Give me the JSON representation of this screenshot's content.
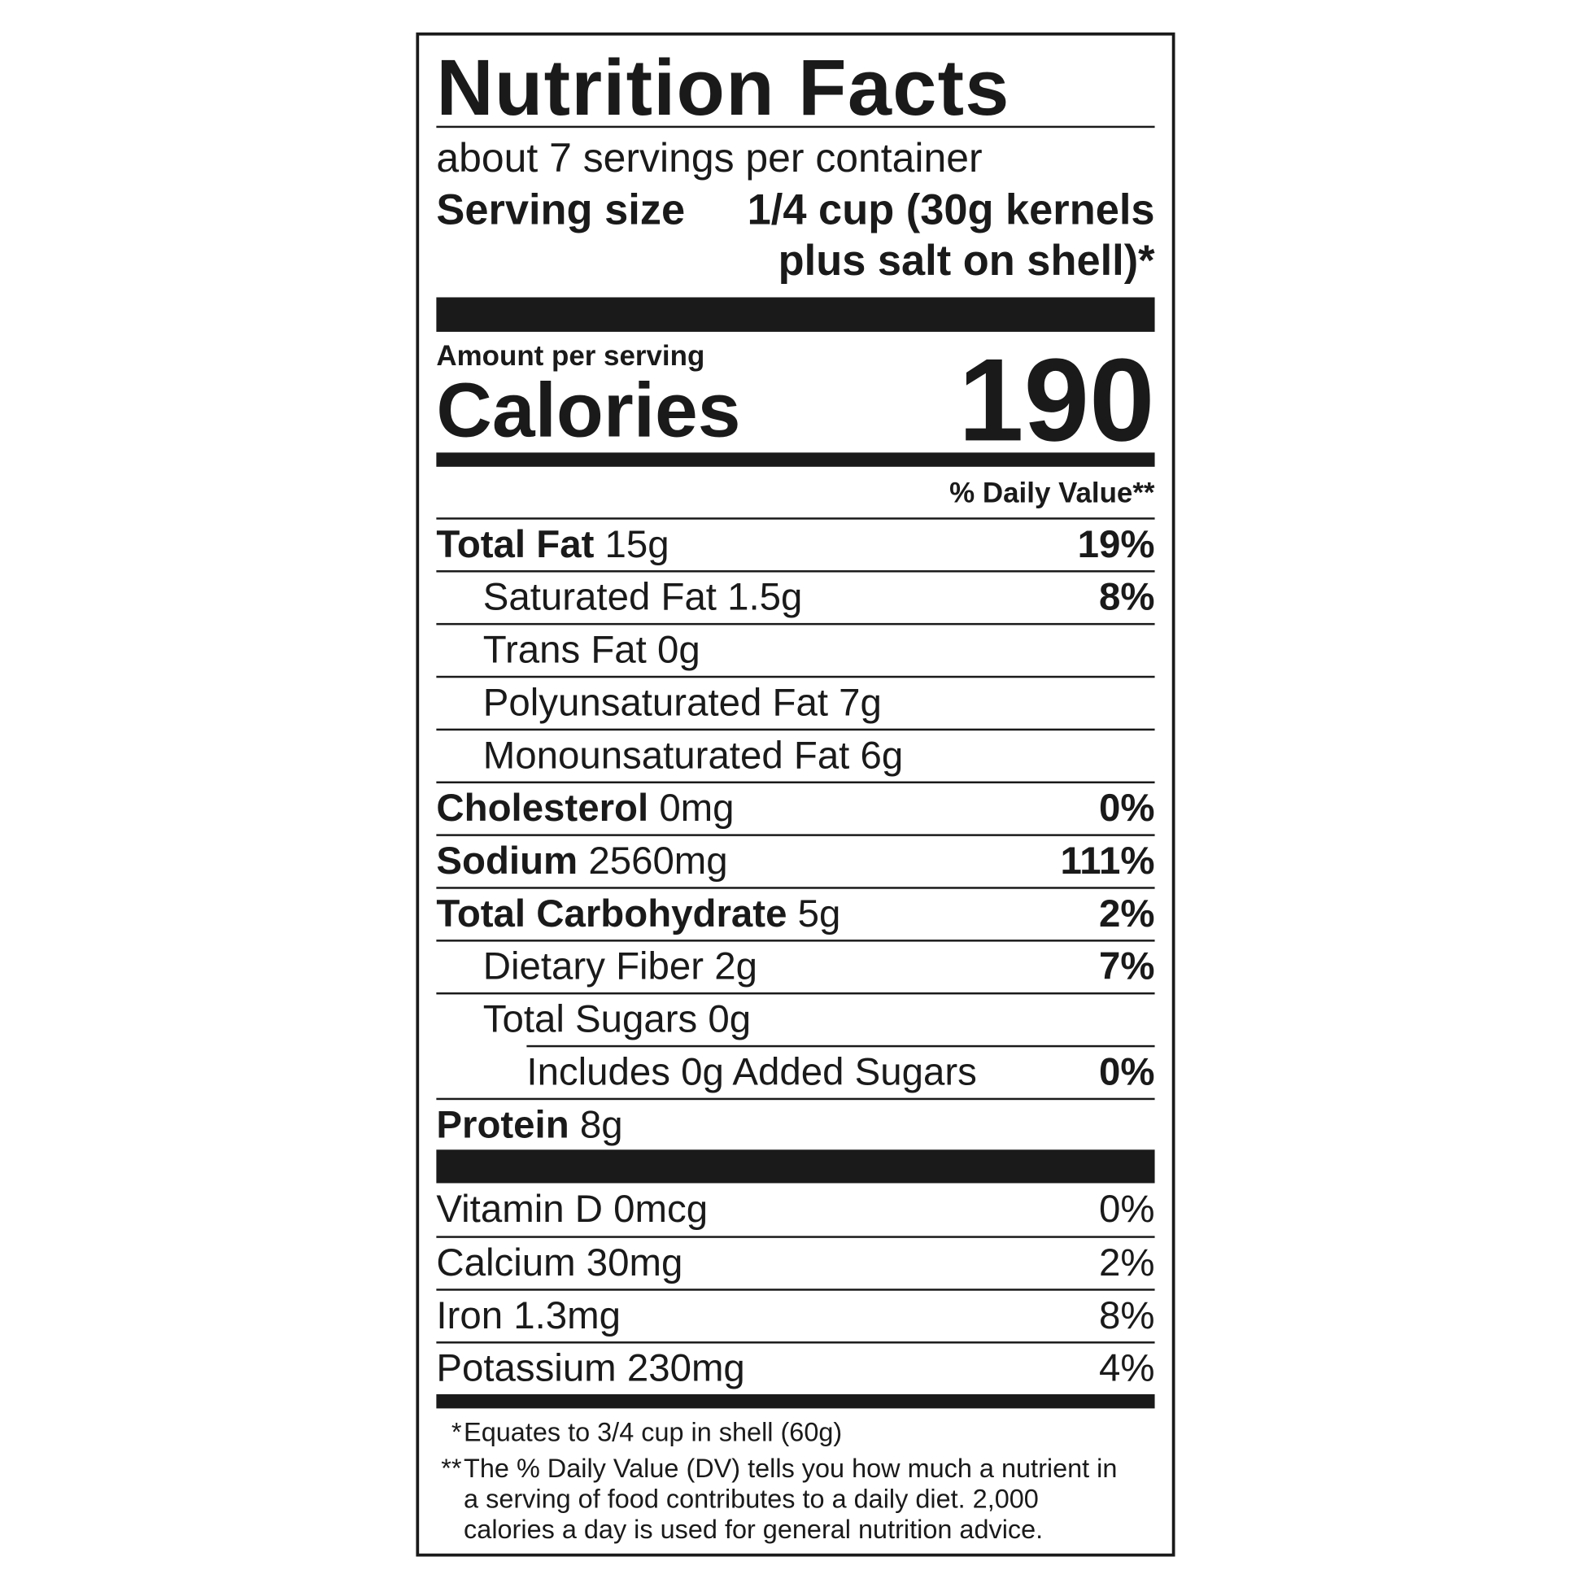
{
  "title": "Nutrition Facts",
  "servings": "about 7 servings per container",
  "serving_size": {
    "label": "Serving size",
    "lines": [
      "1/4 cup (30g kernels",
      "plus salt on shell)*"
    ]
  },
  "amount_per_serving": "Amount per serving",
  "calories": {
    "label": "Calories",
    "value": "190"
  },
  "daily_value_header": "% Daily Value**",
  "nutrients": [
    {
      "name": "Total Fat",
      "amount": "15g",
      "dv": "19%",
      "level": 0
    },
    {
      "name": "Saturated Fat",
      "amount": "1.5g",
      "dv": "8%",
      "level": 1
    },
    {
      "name": "Trans Fat",
      "amount": "0g",
      "dv": null,
      "level": 1
    },
    {
      "name": "Polyunsaturated Fat",
      "amount": "7g",
      "dv": null,
      "level": 1
    },
    {
      "name": "Monounsaturated Fat",
      "amount": "6g",
      "dv": null,
      "level": 1
    },
    {
      "name": "Cholesterol",
      "amount": "0mg",
      "dv": "0%",
      "level": 0
    },
    {
      "name": "Sodium",
      "amount": "2560mg",
      "dv": "111%",
      "level": 0
    },
    {
      "name": "Total Carbohydrate",
      "amount": "5g",
      "dv": "2%",
      "level": 0
    },
    {
      "name": "Dietary Fiber",
      "amount": "2g",
      "dv": "7%",
      "level": 1
    },
    {
      "name": "Total Sugars",
      "amount": "0g",
      "dv": null,
      "level": 1
    },
    {
      "name": "Includes",
      "amount": "0g Added Sugars",
      "dv": "0%",
      "level": 2
    },
    {
      "name": "Protein",
      "amount": "8g",
      "dv": null,
      "level": 0
    }
  ],
  "vitamins": [
    {
      "name": "Vitamin D",
      "amount": "0mcg",
      "dv": "0%"
    },
    {
      "name": "Calcium",
      "amount": "30mg",
      "dv": "2%"
    },
    {
      "name": "Iron",
      "amount": "1.3mg",
      "dv": "8%"
    },
    {
      "name": "Potassium",
      "amount": "230mg",
      "dv": "4%"
    }
  ],
  "footnotes": [
    {
      "marker": "*",
      "text": "Equates to 3/4 cup in shell (60g)"
    },
    {
      "marker": "**",
      "text": "The % Daily Value (DV) tells you how much a nutrient in a serving of food contributes to a daily diet. 2,000 calories a day is used for general nutrition advice."
    }
  ]
}
